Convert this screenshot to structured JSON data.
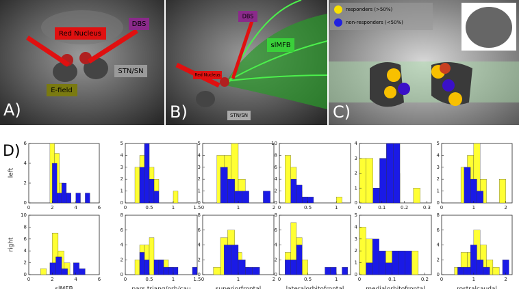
{
  "panels": {
    "a": {
      "label": "A)",
      "red_nucleus": "Red Nucleus",
      "dbs": "DBS",
      "stn": "STN/SN",
      "efield": "E-field"
    },
    "b": {
      "label": "B)",
      "dbs": "DBS",
      "slmfb": "slMFB",
      "red_nucleus": "Red Nucleus",
      "stn": "STN/SN"
    },
    "c": {
      "label": "C)",
      "legend": [
        "responders (>50%)",
        "non-responders (<50%)"
      ]
    },
    "d": {
      "label": "D)",
      "rows": [
        "left",
        "right"
      ]
    }
  },
  "chart_data": [
    {
      "type": "histogram",
      "xlim": [
        0,
        6
      ],
      "xticks": [
        0,
        2,
        4,
        6
      ],
      "ylim": [
        0,
        6
      ],
      "yticks": [
        0,
        2,
        4,
        6
      ],
      "series": [
        {
          "color": "#ffff33",
          "bins": [
            1.8,
            2.2,
            2.6,
            3.0,
            3.4
          ],
          "values": [
            6,
            5,
            2,
            1
          ]
        },
        {
          "color": "#1a1ae6",
          "bins": [
            2.0,
            2.4,
            2.8,
            3.2,
            3.6,
            4.0,
            4.4,
            4.8,
            5.2
          ],
          "values": [
            4,
            1,
            2,
            1,
            0,
            1,
            0,
            1
          ]
        }
      ]
    },
    {
      "type": "histogram",
      "xlim": [
        0,
        1.5
      ],
      "xticks": [
        0,
        0.5,
        1,
        1.5
      ],
      "ylim": [
        0,
        5
      ],
      "yticks": [
        0,
        1,
        2,
        3,
        4,
        5
      ],
      "series": [
        {
          "color": "#ffff33",
          "bins": [
            0.2,
            0.3,
            0.4,
            0.5,
            0.6,
            0.7,
            0.8,
            0.9,
            1.0,
            1.1
          ],
          "values": [
            3,
            4,
            5,
            3,
            2,
            0,
            0,
            0,
            1
          ]
        },
        {
          "color": "#1a1ae6",
          "bins": [
            0.3,
            0.4,
            0.5,
            0.6,
            0.7
          ],
          "values": [
            3,
            5,
            2,
            1
          ]
        }
      ]
    },
    {
      "type": "histogram",
      "xlim": [
        0,
        2
      ],
      "xticks": [
        0,
        1,
        2
      ],
      "ylim": [
        0,
        5
      ],
      "yticks": [
        0,
        1,
        2,
        3,
        4,
        5
      ],
      "series": [
        {
          "color": "#ffff33",
          "bins": [
            0.4,
            0.6,
            0.8,
            1.0,
            1.2
          ],
          "values": [
            4,
            4,
            5,
            2
          ]
        },
        {
          "color": "#1a1ae6",
          "bins": [
            0.5,
            0.7,
            0.9,
            1.1,
            1.3,
            1.5,
            1.7,
            1.9
          ],
          "values": [
            3,
            2,
            1,
            1,
            0,
            0,
            1
          ]
        }
      ]
    },
    {
      "type": "histogram",
      "xlim": [
        0,
        1.25
      ],
      "xticks": [
        0,
        0.5,
        1
      ],
      "ylim": [
        0,
        10
      ],
      "yticks": [
        0,
        2,
        4,
        6,
        8,
        10
      ],
      "series": [
        {
          "color": "#ffff33",
          "bins": [
            0.1,
            0.2,
            0.3,
            0.4,
            0.5,
            0.6,
            0.7,
            0.8,
            0.9,
            1.0,
            1.1
          ],
          "values": [
            8,
            6,
            2,
            1,
            0,
            0,
            0,
            0,
            0,
            1
          ]
        },
        {
          "color": "#1a1ae6",
          "bins": [
            0.2,
            0.3,
            0.4,
            0.5,
            0.6
          ],
          "values": [
            4,
            3,
            1,
            1
          ]
        }
      ]
    },
    {
      "type": "histogram",
      "xlim": [
        0,
        0.32
      ],
      "xticks": [
        0,
        0.1,
        0.2,
        0.3
      ],
      "ylim": [
        0,
        4
      ],
      "yticks": [
        0,
        1,
        2,
        3,
        4
      ],
      "series": [
        {
          "color": "#ffff33",
          "bins": [
            0.0,
            0.03,
            0.06,
            0.09,
            0.12,
            0.15,
            0.18,
            0.21,
            0.24,
            0.27
          ],
          "values": [
            3,
            3,
            1,
            3,
            4,
            2,
            0,
            0,
            1
          ]
        },
        {
          "color": "#1a1ae6",
          "bins": [
            0.06,
            0.09,
            0.12,
            0.15,
            0.18
          ],
          "values": [
            1,
            3,
            4,
            4
          ]
        }
      ]
    },
    {
      "type": "histogram",
      "xlim": [
        0,
        2.2
      ],
      "xticks": [
        0,
        1,
        2
      ],
      "ylim": [
        0,
        5
      ],
      "yticks": [
        0,
        1,
        2,
        3,
        4,
        5
      ],
      "series": [
        {
          "color": "#ffff33",
          "bins": [
            0.6,
            0.8,
            1.0,
            1.2,
            1.4,
            1.6,
            1.8,
            2.0
          ],
          "values": [
            3,
            4,
            5,
            2,
            0,
            0,
            2
          ]
        },
        {
          "color": "#1a1ae6",
          "bins": [
            0.7,
            0.9,
            1.1,
            1.3
          ],
          "values": [
            3,
            2,
            1
          ]
        }
      ]
    },
    {
      "type": "histogram",
      "xlabel": "slMFB",
      "xlim": [
        0,
        6
      ],
      "xticks": [
        0,
        2,
        4,
        6
      ],
      "ylim": [
        0,
        10
      ],
      "yticks": [
        0,
        2,
        4,
        6,
        8,
        10
      ],
      "series": [
        {
          "color": "#ffff33",
          "bins": [
            1.0,
            1.5,
            2.0,
            2.5,
            3.0,
            3.5
          ],
          "values": [
            1,
            0,
            7,
            4,
            2
          ]
        },
        {
          "color": "#1a1ae6",
          "bins": [
            1.8,
            2.3,
            2.8,
            3.3,
            3.8,
            4.3,
            4.8
          ],
          "values": [
            2,
            3,
            1,
            0,
            2,
            1
          ]
        }
      ]
    },
    {
      "type": "histogram",
      "xlabel": "pars triang/orb/cau",
      "xlim": [
        0,
        1.5
      ],
      "xticks": [
        0,
        0.5,
        1,
        1.5
      ],
      "ylim": [
        0,
        8
      ],
      "yticks": [
        0,
        2,
        4,
        6,
        8
      ],
      "series": [
        {
          "color": "#ffff33",
          "bins": [
            0.2,
            0.3,
            0.4,
            0.5,
            0.6,
            0.7,
            0.8,
            0.9,
            1.0
          ],
          "values": [
            2,
            4,
            4,
            5,
            2,
            2,
            2,
            1
          ]
        },
        {
          "color": "#1a1ae6",
          "bins": [
            0.3,
            0.4,
            0.5,
            0.6,
            0.7,
            0.8,
            0.9,
            1.0,
            1.1,
            1.2,
            1.3,
            1.4,
            1.5
          ],
          "values": [
            3,
            2,
            0,
            2,
            2,
            1,
            1,
            1,
            0,
            0,
            0,
            1
          ]
        }
      ]
    },
    {
      "type": "histogram",
      "xlabel": "superiorfrontal",
      "xlim": [
        0,
        2
      ],
      "xticks": [
        0,
        1,
        2
      ],
      "ylim": [
        0,
        8
      ],
      "yticks": [
        0,
        2,
        4,
        6,
        8
      ],
      "series": [
        {
          "color": "#ffff33",
          "bins": [
            0.3,
            0.5,
            0.7,
            0.9,
            1.1,
            1.3
          ],
          "values": [
            1,
            5,
            6,
            3,
            1
          ]
        },
        {
          "color": "#1a1ae6",
          "bins": [
            0.6,
            0.8,
            1.0,
            1.2,
            1.4,
            1.6
          ],
          "values": [
            4,
            4,
            2,
            1,
            1
          ]
        }
      ]
    },
    {
      "type": "histogram",
      "xlabel": "lateralorbitofrontal",
      "xlim": [
        0,
        1.25
      ],
      "xticks": [
        0,
        0.5,
        1
      ],
      "ylim": [
        0,
        8
      ],
      "yticks": [
        0,
        2,
        4,
        6,
        8
      ],
      "series": [
        {
          "color": "#ffff33",
          "bins": [
            0.1,
            0.2,
            0.3,
            0.4,
            0.5
          ],
          "values": [
            3,
            7,
            5,
            2
          ]
        },
        {
          "color": "#1a1ae6",
          "bins": [
            0.1,
            0.2,
            0.3,
            0.4,
            0.5,
            0.6,
            0.7,
            0.8,
            0.9,
            1.0,
            1.1,
            1.2
          ],
          "values": [
            2,
            2,
            4,
            0,
            0,
            0,
            0,
            1,
            1,
            0,
            1
          ]
        }
      ]
    },
    {
      "type": "histogram",
      "xlabel": "medialorbitofrontal",
      "xlim": [
        0,
        0.22
      ],
      "xticks": [
        0,
        0.1,
        0.2
      ],
      "ylim": [
        0,
        5
      ],
      "yticks": [
        0,
        1,
        2,
        3,
        4,
        5
      ],
      "series": [
        {
          "color": "#ffff33",
          "bins": [
            0.0,
            0.02,
            0.04,
            0.06,
            0.08,
            0.1,
            0.12,
            0.14,
            0.16,
            0.18
          ],
          "values": [
            4,
            3,
            2,
            1,
            2,
            2,
            2,
            1,
            2
          ]
        },
        {
          "color": "#1a1ae6",
          "bins": [
            0.02,
            0.04,
            0.06,
            0.08,
            0.1,
            0.12,
            0.14,
            0.16
          ],
          "values": [
            1,
            3,
            2,
            1,
            2,
            2,
            2
          ]
        }
      ]
    },
    {
      "type": "histogram",
      "xlabel": "rostralcaudal",
      "xlim": [
        0,
        2.2
      ],
      "xticks": [
        0,
        1,
        2
      ],
      "ylim": [
        0,
        8
      ],
      "yticks": [
        0,
        2,
        4,
        6,
        8
      ],
      "series": [
        {
          "color": "#ffff33",
          "bins": [
            0.4,
            0.6,
            0.8,
            1.0,
            1.2,
            1.4,
            1.6,
            1.8
          ],
          "values": [
            1,
            3,
            3,
            6,
            4,
            2,
            1
          ]
        },
        {
          "color": "#1a1ae6",
          "bins": [
            0.5,
            0.7,
            0.9,
            1.1,
            1.3,
            1.5,
            1.7,
            1.9,
            2.1
          ],
          "values": [
            1,
            1,
            4,
            2,
            1,
            0,
            0,
            2
          ]
        }
      ]
    }
  ]
}
